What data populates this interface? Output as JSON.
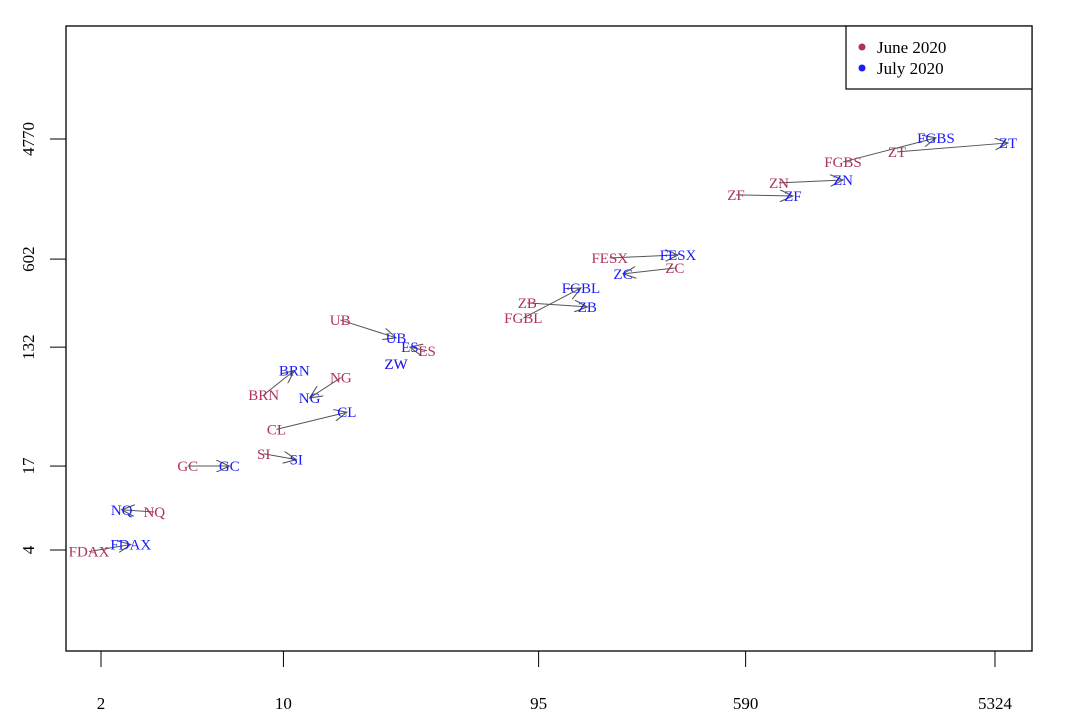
{
  "chart_data": {
    "type": "scatter",
    "title": "",
    "xlabel": "",
    "ylabel": "",
    "x_scale": "log",
    "y_scale": "log",
    "x_ticks": [
      2,
      10,
      95,
      590,
      5324
    ],
    "y_ticks": [
      4,
      17,
      132,
      602,
      4770
    ],
    "grid": false,
    "legend_position": "top-right",
    "colors": {
      "June 2020": "#b03060",
      "July 2020": "#1a1aff",
      "arrow": "#555555"
    },
    "series": [
      {
        "name": "June 2020",
        "points": [
          {
            "label": "FDAX",
            "x": 1.8,
            "y": 3.9
          },
          {
            "label": "NQ",
            "x": 3.2,
            "y": 7.7
          },
          {
            "label": "GC",
            "x": 4.3,
            "y": 17
          },
          {
            "label": "SI",
            "x": 8.4,
            "y": 21
          },
          {
            "label": "CL",
            "x": 9.4,
            "y": 32
          },
          {
            "label": "BRN",
            "x": 8.4,
            "y": 58
          },
          {
            "label": "NG",
            "x": 16.6,
            "y": 78
          },
          {
            "label": "UB",
            "x": 16.5,
            "y": 211
          },
          {
            "label": "ES",
            "x": 35.5,
            "y": 124
          },
          {
            "label": "ZW",
            "x": 27,
            "y": 99
          },
          {
            "label": "ZB",
            "x": 86,
            "y": 283
          },
          {
            "label": "FGBL",
            "x": 83,
            "y": 218
          },
          {
            "label": "FESX",
            "x": 178,
            "y": 614
          },
          {
            "label": "ZC",
            "x": 316,
            "y": 516
          },
          {
            "label": "ZF",
            "x": 542,
            "y": 1820
          },
          {
            "label": "ZN",
            "x": 792,
            "y": 2239
          },
          {
            "label": "FGBS",
            "x": 1393,
            "y": 3213
          },
          {
            "label": "ZT",
            "x": 2244,
            "y": 3819
          }
        ]
      },
      {
        "name": "July 2020",
        "points": [
          {
            "label": "FDAX",
            "x": 2.6,
            "y": 4.4
          },
          {
            "label": "NQ",
            "x": 2.4,
            "y": 8.0
          },
          {
            "label": "GC",
            "x": 6.2,
            "y": 17
          },
          {
            "label": "SI",
            "x": 11.2,
            "y": 19
          },
          {
            "label": "CL",
            "x": 17.5,
            "y": 43
          },
          {
            "label": "BRN",
            "x": 11,
            "y": 88
          },
          {
            "label": "NG",
            "x": 12.6,
            "y": 55
          },
          {
            "label": "UB",
            "x": 27,
            "y": 155
          },
          {
            "label": "ES",
            "x": 30.5,
            "y": 132
          },
          {
            "label": "ZW",
            "x": 27,
            "y": 99
          },
          {
            "label": "ZB",
            "x": 146,
            "y": 264
          },
          {
            "label": "FGBL",
            "x": 138,
            "y": 366
          },
          {
            "label": "FESX",
            "x": 325,
            "y": 647
          },
          {
            "label": "ZC",
            "x": 200,
            "y": 467
          },
          {
            "label": "ZF",
            "x": 895,
            "y": 1786
          },
          {
            "label": "ZN",
            "x": 1393,
            "y": 2355
          },
          {
            "label": "FGBS",
            "x": 3162,
            "y": 4864
          },
          {
            "label": "ZT",
            "x": 5970,
            "y": 4457
          }
        ]
      }
    ]
  },
  "legend": {
    "items": [
      {
        "label": "June 2020",
        "color": "#b03060"
      },
      {
        "label": "July 2020",
        "color": "#1a1aff"
      }
    ]
  },
  "axes": {
    "x_tick_labels": [
      "2",
      "10",
      "95",
      "590",
      "5324"
    ],
    "y_tick_labels": [
      "4",
      "17",
      "132",
      "602",
      "4770"
    ]
  }
}
